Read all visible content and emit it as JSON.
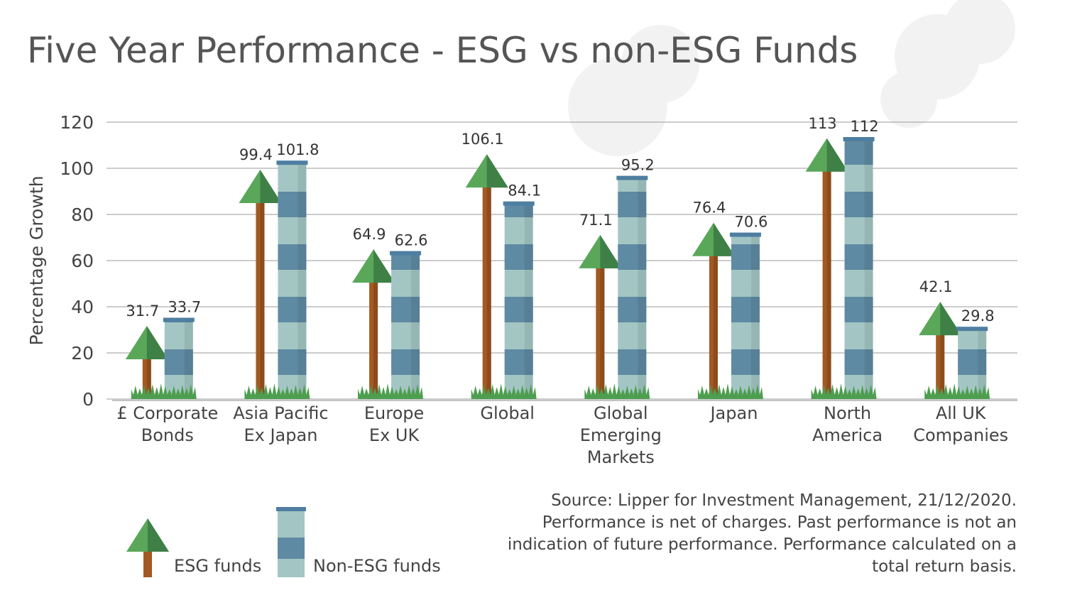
{
  "chart_data": {
    "type": "bar",
    "title": "Five Year Performance - ESG vs non-ESG Funds",
    "ylabel": "Percentage Growth",
    "xlabel": "",
    "ylim": [
      0,
      120
    ],
    "yticks": [
      0,
      20,
      40,
      60,
      80,
      100,
      120
    ],
    "grid": true,
    "categories": [
      [
        "£ Corporate",
        "Bonds"
      ],
      [
        "Asia Pacific",
        "Ex Japan"
      ],
      [
        "Europe",
        "Ex UK"
      ],
      [
        "Global"
      ],
      [
        "Global",
        "Emerging",
        "Markets"
      ],
      [
        "Japan"
      ],
      [
        "North",
        "America"
      ],
      [
        "All UK",
        "Companies"
      ]
    ],
    "series": [
      {
        "name": "ESG funds",
        "values": [
          31.7,
          99.4,
          64.9,
          106.1,
          71.1,
          76.4,
          113,
          42.1
        ],
        "labels": [
          "31.7",
          "99.4",
          "64.9",
          "106.1",
          "71.1",
          "76.4",
          "113",
          "42.1"
        ]
      },
      {
        "name": "Non-ESG funds",
        "values": [
          33.7,
          101.8,
          62.6,
          84.1,
          95.2,
          70.6,
          112,
          29.8
        ],
        "labels": [
          "33.7",
          "101.8",
          "62.6",
          "84.1",
          "95.2",
          "70.6",
          "112",
          "29.8"
        ]
      }
    ],
    "legend": "bottom-left",
    "colors": {
      "tree": "#5aa75a",
      "tree_dark": "#3e8046",
      "trunk": "#a25a22",
      "chimney_light": "#a3c6c4",
      "chimney_dark": "#5f8aa3",
      "cap": "#4e7ea1",
      "grass": "#4d9e4f"
    }
  },
  "source": "Source: Lipper for Investment Management, 21/12/2020. Performance is net of charges. Past performance is not an indication of future performance. Performance calculated on a total return basis."
}
